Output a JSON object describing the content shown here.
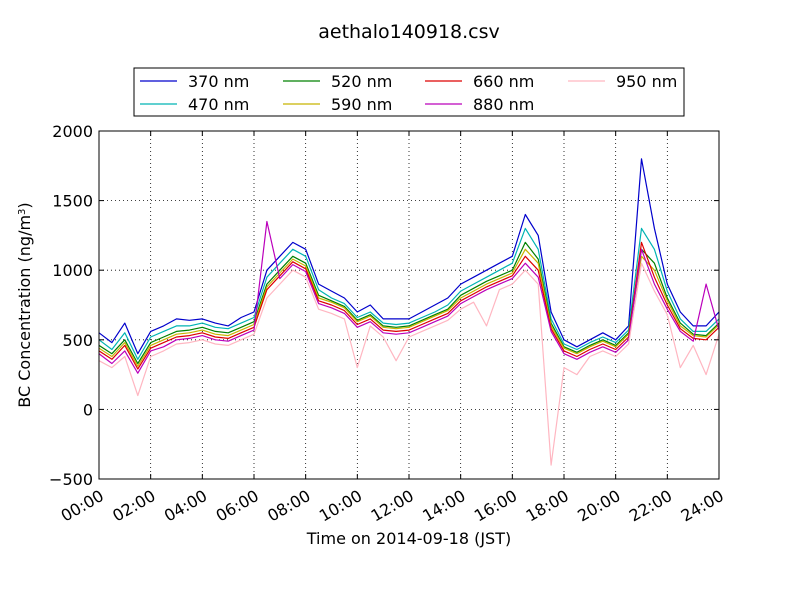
{
  "chart_data": {
    "type": "line",
    "title": "aethalo140918.csv",
    "xlabel": "Time on 2014-09-18 (JST)",
    "ylabel": "BC Concentration (ng/m",
    "ylabel_unit_exponent": "3",
    "ylabel_close": ")",
    "x_unit": "hours",
    "xlim": [
      0,
      24
    ],
    "ylim": [
      -500,
      2000
    ],
    "grid": true,
    "grid_style": "dotted",
    "legend_placement": "top-center",
    "x_tick_values": [
      0,
      2,
      4,
      6,
      8,
      10,
      12,
      14,
      16,
      18,
      20,
      22,
      24
    ],
    "x_tick_labels": [
      "00:00",
      "02:00",
      "04:00",
      "06:00",
      "08:00",
      "10:00",
      "12:00",
      "14:00",
      "16:00",
      "18:00",
      "20:00",
      "22:00",
      "24:00"
    ],
    "y_tick_values": [
      -500,
      0,
      500,
      1000,
      1500,
      2000
    ],
    "y_tick_labels": [
      "−500",
      "0",
      "500",
      "1000",
      "1500",
      "2000"
    ],
    "x": [
      0,
      0.5,
      1,
      1.5,
      2,
      2.5,
      3,
      3.5,
      4,
      4.5,
      5,
      5.5,
      6,
      6.5,
      7,
      7.5,
      8,
      8.5,
      9,
      9.5,
      10,
      10.5,
      11,
      11.5,
      12,
      12.5,
      13,
      13.5,
      14,
      14.5,
      15,
      15.5,
      16,
      16.5,
      17,
      17.5,
      18,
      18.5,
      19,
      19.5,
      20,
      20.5,
      21,
      21.5,
      22,
      22.5,
      23,
      23.5,
      24
    ],
    "series": [
      {
        "name": "370 nm",
        "color": "#0000cc",
        "values": [
          550,
          480,
          620,
          400,
          560,
          600,
          650,
          640,
          650,
          620,
          600,
          660,
          700,
          1000,
          1100,
          1200,
          1150,
          900,
          850,
          800,
          700,
          750,
          650,
          650,
          650,
          700,
          750,
          800,
          900,
          950,
          1000,
          1050,
          1100,
          1400,
          1250,
          700,
          500,
          450,
          500,
          550,
          500,
          600,
          1800,
          1300,
          900,
          700,
          600,
          600,
          700
        ]
      },
      {
        "name": "470 nm",
        "color": "#00b3b3",
        "values": [
          500,
          430,
          550,
          360,
          520,
          560,
          600,
          600,
          620,
          590,
          580,
          620,
          660,
          950,
          1050,
          1150,
          1100,
          860,
          800,
          760,
          660,
          700,
          620,
          610,
          620,
          660,
          700,
          750,
          850,
          900,
          950,
          1000,
          1050,
          1300,
          1150,
          650,
          470,
          430,
          480,
          520,
          480,
          570,
          1300,
          1150,
          850,
          650,
          560,
          560,
          650
        ]
      },
      {
        "name": "520 nm",
        "color": "#008000",
        "values": [
          460,
          400,
          500,
          330,
          480,
          520,
          560,
          570,
          590,
          560,
          550,
          590,
          630,
          900,
          1000,
          1100,
          1050,
          820,
          780,
          740,
          640,
          680,
          600,
          590,
          600,
          640,
          680,
          720,
          820,
          870,
          920,
          960,
          1000,
          1200,
          1080,
          620,
          450,
          410,
          460,
          500,
          460,
          550,
          1150,
          1050,
          800,
          620,
          540,
          530,
          620
        ]
      },
      {
        "name": "590 nm",
        "color": "#c8b400",
        "values": [
          440,
          380,
          480,
          310,
          460,
          500,
          540,
          550,
          570,
          540,
          530,
          570,
          610,
          880,
          980,
          1080,
          1030,
          800,
          770,
          730,
          630,
          670,
          590,
          580,
          590,
          630,
          670,
          710,
          800,
          850,
          900,
          940,
          980,
          1150,
          1050,
          600,
          440,
          400,
          450,
          490,
          450,
          540,
          1100,
          1000,
          780,
          600,
          530,
          520,
          610
        ]
      },
      {
        "name": "660 nm",
        "color": "#dd0000",
        "values": [
          420,
          360,
          460,
          290,
          440,
          480,
          520,
          530,
          550,
          520,
          510,
          550,
          590,
          860,
          960,
          1060,
          1010,
          780,
          750,
          710,
          610,
          650,
          570,
          560,
          570,
          610,
          650,
          690,
          780,
          830,
          880,
          920,
          960,
          1100,
          1000,
          580,
          420,
          380,
          430,
          470,
          430,
          520,
          1200,
          950,
          750,
          580,
          510,
          500,
          590
        ]
      },
      {
        "name": "880 nm",
        "color": "#bb00bb",
        "values": [
          400,
          330,
          420,
          260,
          420,
          450,
          500,
          510,
          530,
          500,
          490,
          530,
          570,
          1350,
          940,
          1040,
          990,
          760,
          730,
          690,
          590,
          630,
          550,
          540,
          550,
          590,
          630,
          670,
          760,
          810,
          860,
          900,
          940,
          1050,
          950,
          560,
          400,
          360,
          410,
          450,
          410,
          500,
          1150,
          900,
          720,
          560,
          490,
          900,
          570
        ]
      },
      {
        "name": "950 nm",
        "color": "#ffb6c1",
        "values": [
          350,
          300,
          380,
          100,
          380,
          420,
          470,
          480,
          500,
          470,
          460,
          500,
          540,
          800,
          900,
          1000,
          950,
          720,
          690,
          650,
          300,
          600,
          520,
          350,
          520,
          560,
          600,
          640,
          720,
          770,
          600,
          860,
          900,
          1000,
          900,
          -400,
          300,
          250,
          380,
          420,
          380,
          470,
          1050,
          850,
          680,
          300,
          460,
          250,
          540
        ]
      }
    ]
  }
}
